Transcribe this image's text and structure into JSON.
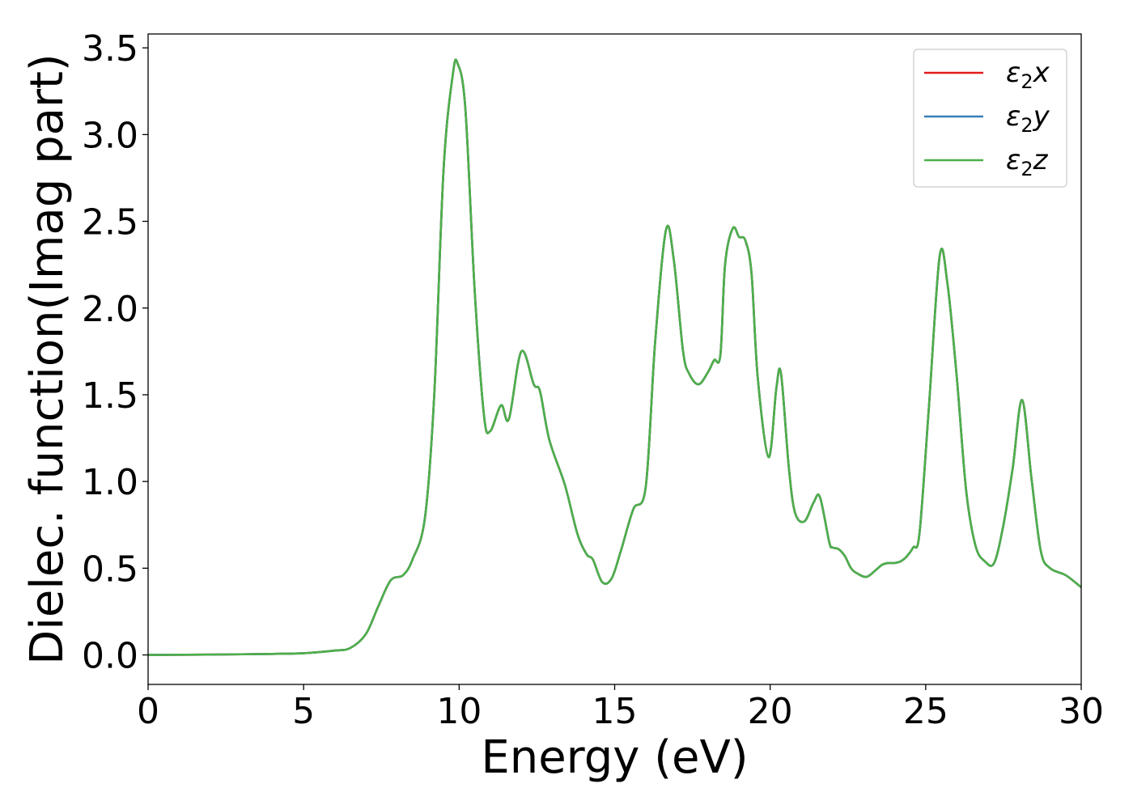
{
  "chart_data": {
    "type": "line",
    "title": "",
    "xlabel": "Energy (eV)",
    "ylabel": "Dielec. function(Imag part)",
    "xlim": [
      0,
      30
    ],
    "ylim": [
      -0.17,
      3.58
    ],
    "xticks": [
      0,
      5,
      10,
      15,
      20,
      25,
      30
    ],
    "xtick_labels": [
      "0",
      "5",
      "10",
      "15",
      "20",
      "25",
      "30"
    ],
    "yticks": [
      0.0,
      0.5,
      1.0,
      1.5,
      2.0,
      2.5,
      3.0,
      3.5
    ],
    "ytick_labels": [
      "0.0",
      "0.5",
      "1.0",
      "1.5",
      "2.0",
      "2.5",
      "3.0",
      "3.5"
    ],
    "grid": false,
    "legend_position": "top-right",
    "colors": {
      "e2x": "#e41a1c",
      "e2y": "#377eb8",
      "e2z": "#4daf4a"
    },
    "legend": [
      {
        "key": "e2x",
        "base": "ε",
        "sub": "2",
        "suffix": "x"
      },
      {
        "key": "e2y",
        "base": "ε",
        "sub": "2",
        "suffix": "y"
      },
      {
        "key": "e2z",
        "base": "ε",
        "sub": "2",
        "suffix": "z"
      }
    ],
    "x": [
      0,
      2,
      4,
      5,
      6,
      6.5,
      7.0,
      7.4,
      7.8,
      8.2,
      8.5,
      8.9,
      9.2,
      9.5,
      9.8,
      9.95,
      10.2,
      10.5,
      10.8,
      11.0,
      11.35,
      11.6,
      12.0,
      12.4,
      12.6,
      12.9,
      13.4,
      13.8,
      14.1,
      14.3,
      14.6,
      14.9,
      15.2,
      15.6,
      16.0,
      16.3,
      16.65,
      16.9,
      17.2,
      17.4,
      17.7,
      18.0,
      18.2,
      18.4,
      18.55,
      18.8,
      19.0,
      19.2,
      19.4,
      19.6,
      19.95,
      20.2,
      20.35,
      20.6,
      20.8,
      21.1,
      21.4,
      21.6,
      21.9,
      22.0,
      22.2,
      22.4,
      22.6,
      22.8,
      23.1,
      23.4,
      23.6,
      23.8,
      24.0,
      24.2,
      24.4,
      24.6,
      24.8,
      25.1,
      25.45,
      25.7,
      26.0,
      26.3,
      26.6,
      26.9,
      27.2,
      27.5,
      27.8,
      28.1,
      28.4,
      28.7,
      29.0,
      29.5,
      30.0
    ],
    "series": [
      {
        "name": "ε2x",
        "key": "e2x",
        "values": [
          0.0,
          0.002,
          0.006,
          0.01,
          0.025,
          0.04,
          0.12,
          0.28,
          0.43,
          0.46,
          0.55,
          0.79,
          1.5,
          2.8,
          3.35,
          3.41,
          3.15,
          2.1,
          1.38,
          1.29,
          1.44,
          1.36,
          1.75,
          1.56,
          1.52,
          1.24,
          0.98,
          0.7,
          0.58,
          0.55,
          0.42,
          0.44,
          0.6,
          0.84,
          0.97,
          1.8,
          2.45,
          2.28,
          1.75,
          1.62,
          1.56,
          1.63,
          1.7,
          1.73,
          2.25,
          2.46,
          2.41,
          2.39,
          2.2,
          1.6,
          1.14,
          1.54,
          1.62,
          1.08,
          0.82,
          0.77,
          0.88,
          0.91,
          0.65,
          0.62,
          0.61,
          0.57,
          0.5,
          0.47,
          0.45,
          0.49,
          0.52,
          0.53,
          0.53,
          0.54,
          0.57,
          0.62,
          0.7,
          1.42,
          2.3,
          2.14,
          1.6,
          0.95,
          0.63,
          0.54,
          0.53,
          0.75,
          1.08,
          1.47,
          1.02,
          0.6,
          0.5,
          0.46,
          0.39
        ]
      },
      {
        "name": "ε2y",
        "key": "e2y",
        "values": [
          0.0,
          0.002,
          0.006,
          0.01,
          0.025,
          0.04,
          0.12,
          0.28,
          0.43,
          0.46,
          0.55,
          0.79,
          1.5,
          2.8,
          3.35,
          3.41,
          3.15,
          2.1,
          1.38,
          1.29,
          1.44,
          1.36,
          1.75,
          1.56,
          1.52,
          1.24,
          0.98,
          0.7,
          0.58,
          0.55,
          0.42,
          0.44,
          0.6,
          0.84,
          0.97,
          1.8,
          2.45,
          2.28,
          1.75,
          1.62,
          1.56,
          1.63,
          1.7,
          1.73,
          2.25,
          2.46,
          2.41,
          2.39,
          2.2,
          1.6,
          1.14,
          1.54,
          1.62,
          1.08,
          0.82,
          0.77,
          0.88,
          0.91,
          0.65,
          0.62,
          0.61,
          0.57,
          0.5,
          0.47,
          0.45,
          0.49,
          0.52,
          0.53,
          0.53,
          0.54,
          0.57,
          0.62,
          0.7,
          1.42,
          2.3,
          2.14,
          1.6,
          0.95,
          0.63,
          0.54,
          0.53,
          0.75,
          1.08,
          1.47,
          1.02,
          0.6,
          0.5,
          0.46,
          0.39
        ]
      },
      {
        "name": "ε2z",
        "key": "e2z",
        "values": [
          0.0,
          0.002,
          0.006,
          0.01,
          0.025,
          0.04,
          0.12,
          0.28,
          0.43,
          0.46,
          0.55,
          0.79,
          1.5,
          2.8,
          3.35,
          3.41,
          3.15,
          2.1,
          1.38,
          1.29,
          1.44,
          1.36,
          1.75,
          1.56,
          1.52,
          1.24,
          0.98,
          0.7,
          0.58,
          0.55,
          0.42,
          0.44,
          0.6,
          0.84,
          0.97,
          1.8,
          2.45,
          2.28,
          1.75,
          1.62,
          1.56,
          1.63,
          1.7,
          1.73,
          2.25,
          2.46,
          2.41,
          2.39,
          2.2,
          1.6,
          1.14,
          1.54,
          1.62,
          1.08,
          0.82,
          0.77,
          0.88,
          0.91,
          0.65,
          0.62,
          0.61,
          0.57,
          0.5,
          0.47,
          0.45,
          0.49,
          0.52,
          0.53,
          0.53,
          0.54,
          0.57,
          0.62,
          0.7,
          1.42,
          2.3,
          2.14,
          1.6,
          0.95,
          0.63,
          0.54,
          0.53,
          0.75,
          1.08,
          1.47,
          1.02,
          0.6,
          0.5,
          0.46,
          0.39
        ]
      }
    ]
  }
}
